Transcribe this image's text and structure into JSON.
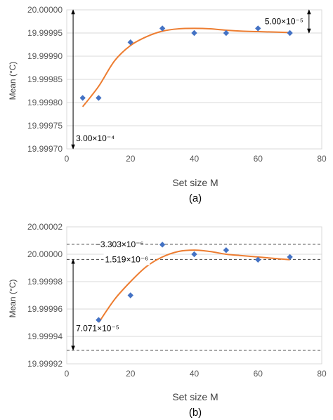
{
  "colors": {
    "marker": "#4472C4",
    "trend": "#ED7D31",
    "gridline": "#D9D9D9",
    "annotation": "#000000",
    "reference_line": "#404040"
  },
  "chart_data": [
    {
      "type": "scatter",
      "caption": "(a)",
      "xlabel": "Set size M",
      "ylabel": "Mean (°C)",
      "xlim": [
        0,
        80
      ],
      "ylim": [
        19.9997,
        20.0
      ],
      "x_ticks": [
        "0",
        "20",
        "40",
        "60",
        "80"
      ],
      "y_ticks": [
        "19.99970",
        "19.99975",
        "19.99980",
        "19.99985",
        "19.99990",
        "19.99995",
        "20.00000"
      ],
      "grid": "horizontal",
      "series": [
        {
          "marker": "diamond",
          "x": [
            5,
            10,
            20,
            30,
            40,
            50,
            60,
            70
          ],
          "y": [
            19.99981,
            19.99981,
            19.99993,
            19.99996,
            19.99995,
            19.99995,
            19.99996,
            19.99995
          ]
        }
      ],
      "trendline": {
        "style": "smooth",
        "x": [
          5,
          10,
          15,
          20,
          25,
          30,
          35,
          40,
          45,
          50,
          55,
          60,
          65,
          70
        ],
        "y": [
          19.999791,
          19.999835,
          19.99989,
          19.999923,
          19.999942,
          19.999954,
          19.999959,
          19.99996,
          19.999959,
          19.999956,
          19.999954,
          19.999953,
          19.999952,
          19.999951
        ]
      },
      "annotations": [
        {
          "text": "3.00×10⁻⁴",
          "arrow": "double",
          "x": 2,
          "y_from": 19.9997,
          "y_to": 20.0
        },
        {
          "text": "5.00×10⁻⁵",
          "arrow": "double",
          "x": 76,
          "y_from": 19.99995,
          "y_to": 20.0
        }
      ]
    },
    {
      "type": "scatter",
      "caption": "(b)",
      "xlabel": "Set size M",
      "ylabel": "Mean (°C)",
      "xlim": [
        0,
        80
      ],
      "ylim": [
        19.99992,
        20.00002
      ],
      "x_ticks": [
        "0",
        "20",
        "40",
        "60",
        "80"
      ],
      "y_ticks": [
        "19.99992",
        "19.99994",
        "19.99996",
        "19.99998",
        "20.00000",
        "20.00002"
      ],
      "grid": "horizontal",
      "series": [
        {
          "marker": "diamond",
          "x": [
            10,
            20,
            30,
            40,
            50,
            60,
            70
          ],
          "y": [
            19.999952,
            19.99997,
            20.000007,
            20.0,
            20.000003,
            19.999996,
            19.999998
          ]
        }
      ],
      "trendline": {
        "style": "smooth",
        "x": [
          10,
          15,
          20,
          25,
          30,
          35,
          40,
          45,
          50,
          55,
          60,
          65,
          70
        ],
        "y": [
          19.99995,
          19.999967,
          19.99998,
          19.999991,
          19.999998,
          20.000002,
          20.000003,
          20.000002,
          20.0,
          19.999999,
          19.999998,
          19.999997,
          19.999996
        ]
      },
      "reference_lines": [
        {
          "y": 20.0000073,
          "style": "dashed"
        },
        {
          "y": 19.9999962,
          "style": "dashed"
        },
        {
          "y": 19.99993,
          "style": "dashed"
        }
      ],
      "annotations": [
        {
          "text": "−3.303×10⁻⁶",
          "kind": "label",
          "x": 9,
          "y": 20.0000073
        },
        {
          "text": "1.519×10⁻⁶",
          "kind": "label",
          "x": 12,
          "y": 19.9999962
        },
        {
          "text": "7.071×10⁻⁵",
          "arrow": "double",
          "x": 2,
          "y_from": 19.99993,
          "y_to": 19.9999962
        }
      ]
    }
  ]
}
